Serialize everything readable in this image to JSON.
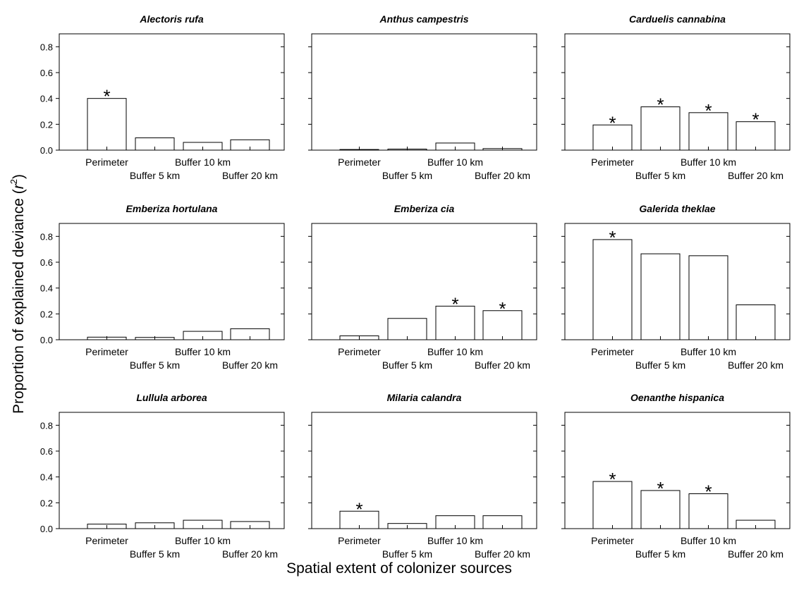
{
  "chart_data": {
    "type": "bar",
    "layout": "3x3 small multiples",
    "ylabel_prefix": "Proportion of explained deviance (",
    "ylabel_var": "r",
    "ylabel_sup": "2",
    "ylabel_suffix": ")",
    "xlabel": "Spatial extent of colonizer sources",
    "categories": [
      "Perimeter",
      "Buffer 5 km",
      "Buffer 10 km",
      "Buffer 20 km"
    ],
    "ylim": [
      0,
      0.9
    ],
    "yticks": [
      "0.0",
      "0.2",
      "0.4",
      "0.6",
      "0.8"
    ],
    "significance_marker": "*",
    "panels": [
      {
        "title": "Alectoris rufa",
        "values": [
          0.4,
          0.095,
          0.06,
          0.08
        ],
        "significant": [
          true,
          false,
          false,
          false
        ]
      },
      {
        "title": "Anthus campestris",
        "values": [
          0.005,
          0.008,
          0.055,
          0.012
        ],
        "significant": [
          false,
          false,
          false,
          false
        ]
      },
      {
        "title": "Carduelis cannabina",
        "values": [
          0.195,
          0.335,
          0.29,
          0.22
        ],
        "significant": [
          true,
          true,
          true,
          true
        ]
      },
      {
        "title": "Emberiza hortulana",
        "values": [
          0.02,
          0.018,
          0.065,
          0.085
        ],
        "significant": [
          false,
          false,
          false,
          false
        ]
      },
      {
        "title": "Emberiza cia",
        "values": [
          0.03,
          0.165,
          0.26,
          0.225
        ],
        "significant": [
          false,
          false,
          true,
          true
        ]
      },
      {
        "title": "Galerida theklae",
        "values": [
          0.775,
          0.665,
          0.65,
          0.27
        ],
        "significant": [
          true,
          false,
          false,
          false
        ]
      },
      {
        "title": "Lullula arborea",
        "values": [
          0.035,
          0.045,
          0.065,
          0.055
        ],
        "significant": [
          false,
          false,
          false,
          false
        ]
      },
      {
        "title": "Milaria calandra",
        "values": [
          0.135,
          0.04,
          0.1,
          0.1
        ],
        "significant": [
          true,
          false,
          false,
          false
        ]
      },
      {
        "title": "Oenanthe hispanica",
        "values": [
          0.365,
          0.295,
          0.27,
          0.065
        ],
        "significant": [
          true,
          true,
          true,
          false
        ]
      }
    ]
  }
}
